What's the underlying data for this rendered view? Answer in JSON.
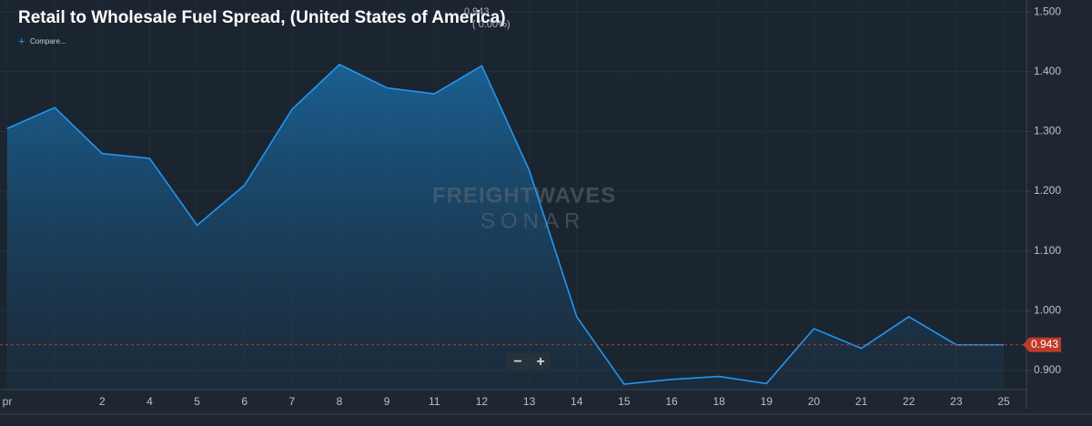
{
  "chart_data": {
    "type": "area",
    "title": "Retail to Wholesale Fuel Spread, (United States of America)",
    "header_value": 0.943,
    "change_label": "( 0.00%)",
    "compare_label": "Compare...",
    "watermark": [
      "FREIGHTWAVES",
      "SONAR"
    ],
    "zoom_controls": [
      "−",
      "+"
    ],
    "categories": [
      "pr",
      null,
      "2",
      "4",
      "5",
      "6",
      "7",
      "8",
      "9",
      "11",
      "12",
      "13",
      "14",
      "15",
      "16",
      "18",
      "19",
      "20",
      "21",
      "22",
      "23",
      "25"
    ],
    "values": [
      1.305,
      1.34,
      1.263,
      1.255,
      1.143,
      1.21,
      1.337,
      1.412,
      1.373,
      1.363,
      1.41,
      1.235,
      0.99,
      0.877,
      0.885,
      0.89,
      0.878,
      0.97,
      0.937,
      0.99,
      0.943,
      0.943
    ],
    "color": "#2196f3",
    "last_value": 0.943,
    "last_value_color": "#c0392b",
    "ylim": [
      0.868,
      1.52
    ],
    "yticks": [
      {
        "value": 0.9,
        "label": "0.900"
      },
      {
        "value": 1.0,
        "label": "1.000"
      },
      {
        "value": 1.1,
        "label": "1.100"
      },
      {
        "value": 1.2,
        "label": "1.200"
      },
      {
        "value": 1.3,
        "label": "1.300"
      },
      {
        "value": 1.4,
        "label": "1.400"
      },
      {
        "value": 1.5,
        "label": "1.500"
      }
    ],
    "grid": true
  }
}
